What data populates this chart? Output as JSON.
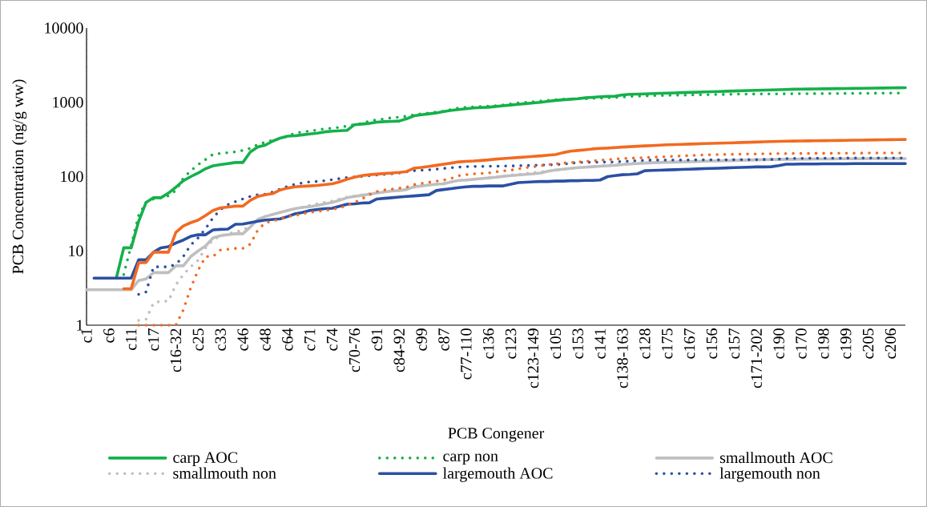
{
  "chart_data": {
    "type": "line",
    "xlabel": "PCB Congener",
    "ylabel": "PCB Concentration (ng/g ww)",
    "log": "y",
    "ylim": [
      1,
      10000
    ],
    "yticks": [
      1,
      10,
      100,
      1000,
      10000
    ],
    "legend": "bottom",
    "categories": [
      "c1",
      null,
      null,
      "c6",
      null,
      null,
      "c11",
      null,
      null,
      "c17",
      null,
      null,
      "c16-32",
      null,
      null,
      "c25",
      null,
      null,
      "c33",
      null,
      null,
      "c46",
      null,
      null,
      "c48",
      null,
      null,
      "c64",
      null,
      null,
      "c71",
      null,
      null,
      "c74",
      null,
      null,
      "c70-76",
      null,
      null,
      "c91",
      null,
      null,
      "c84-92",
      null,
      null,
      "c99",
      null,
      null,
      "c87",
      null,
      null,
      "c77-110",
      null,
      null,
      "c136",
      null,
      null,
      "c123",
      null,
      null,
      "c123-149",
      null,
      null,
      "c105",
      null,
      null,
      "c153",
      null,
      null,
      "c141",
      null,
      null,
      "c138-163",
      null,
      null,
      "c128",
      null,
      null,
      "c175",
      null,
      null,
      "c167",
      null,
      null,
      "c156",
      null,
      null,
      "c157",
      null,
      null,
      "c171-202",
      null,
      null,
      "c190",
      null,
      null,
      "c170",
      null,
      null,
      "c198",
      null,
      null,
      "c199",
      null,
      null,
      "c205",
      null,
      null,
      "c206",
      null,
      null
    ],
    "series": [
      {
        "name": "carp AOC",
        "color": "#15b04b",
        "line_style": "solid",
        "values": [
          null,
          null,
          null,
          null,
          4.3,
          11,
          11,
          25,
          45,
          52,
          52,
          60,
          72,
          88,
          100,
          112,
          128,
          140,
          145,
          150,
          155,
          155,
          215,
          250,
          265,
          300,
          330,
          350,
          355,
          365,
          375,
          385,
          400,
          410,
          415,
          420,
          500,
          510,
          520,
          540,
          550,
          555,
          560,
          600,
          660,
          680,
          700,
          720,
          750,
          780,
          800,
          820,
          840,
          850,
          860,
          880,
          900,
          920,
          940,
          960,
          980,
          1000,
          1030,
          1060,
          1080,
          1100,
          1120,
          1150,
          1170,
          1190,
          1200,
          1210,
          1260,
          1280,
          1290,
          1300,
          1310,
          1320,
          1330,
          1340,
          1350,
          1360,
          1370,
          1380,
          1390,
          1400,
          1410,
          1420,
          1430,
          1440,
          1450,
          1460,
          1470,
          1480,
          1490,
          1500,
          1505,
          1510,
          1515,
          1520,
          1525,
          1530,
          1535,
          1540,
          1545,
          1550,
          1555,
          1560,
          1565,
          1570,
          1575
        ]
      },
      {
        "name": "carp non",
        "color": "#15b04b",
        "line_style": "dotted",
        "values": [
          null,
          null,
          null,
          null,
          null,
          4.8,
          12,
          30,
          45,
          50,
          52,
          55,
          65,
          95,
          120,
          145,
          170,
          200,
          205,
          210,
          215,
          225,
          240,
          270,
          290,
          310,
          325,
          350,
          385,
          400,
          410,
          425,
          440,
          450,
          460,
          480,
          500,
          520,
          560,
          580,
          600,
          620,
          630,
          650,
          680,
          700,
          720,
          740,
          760,
          800,
          840,
          860,
          870,
          880,
          890,
          900,
          920,
          950,
          980,
          1000,
          1020,
          1040,
          1060,
          1080,
          1100,
          1110,
          1120,
          1120,
          1130,
          1140,
          1150,
          1160,
          1180,
          1200,
          1210,
          1220,
          1230,
          1235,
          1240,
          1245,
          1250,
          1255,
          1260,
          1265,
          1270,
          1275,
          1280,
          1285,
          1290,
          1292,
          1294,
          1296,
          1298,
          1300,
          1302,
          1304,
          1306,
          1308,
          1310,
          1312,
          1314,
          1316,
          1318,
          1320,
          1322,
          1324,
          1326,
          1328,
          1330,
          1332,
          1334
        ]
      },
      {
        "name": "smallmouth AOC",
        "color": "#bfbfbf",
        "line_style": "solid",
        "values": [
          3,
          3,
          3,
          3,
          3,
          3,
          3,
          4,
          4.2,
          5.1,
          5.1,
          5.1,
          6.3,
          6.3,
          8.4,
          10,
          11.7,
          15,
          16,
          16.5,
          17,
          17,
          21,
          26.5,
          29,
          31,
          33,
          35,
          37,
          38.5,
          39.5,
          41,
          43,
          45,
          48,
          52,
          54,
          56,
          58,
          60,
          62,
          64,
          65,
          67,
          73,
          75,
          77,
          79,
          80,
          85,
          89,
          90,
          92,
          94,
          96,
          98,
          101,
          103,
          105,
          107,
          109,
          112,
          118,
          123,
          126,
          129,
          132,
          134,
          136,
          138,
          140,
          142,
          145,
          148,
          150,
          152,
          154,
          155,
          156,
          157,
          158,
          159,
          160,
          161,
          162,
          163,
          164,
          165,
          166,
          167,
          168,
          169,
          170,
          170,
          171,
          171,
          172,
          172,
          173,
          173,
          173,
          174,
          174,
          174,
          174,
          175,
          175,
          175,
          175,
          175,
          175
        ]
      },
      {
        "name": "smallmouth non",
        "color": "#bfbfbf",
        "line_style": "dotted",
        "values": [
          null,
          null,
          null,
          null,
          null,
          null,
          null,
          1.16,
          1.2,
          2.0,
          2.1,
          2.1,
          3.5,
          4.8,
          6.1,
          7.5,
          11,
          14,
          16,
          17,
          18,
          19,
          22,
          26,
          29,
          31,
          33,
          35,
          37,
          39,
          41,
          43,
          45,
          47,
          50,
          53,
          55,
          57,
          59,
          61,
          63,
          65,
          67,
          69,
          72,
          75,
          77,
          79,
          82,
          85,
          88,
          90,
          92,
          94,
          96,
          99,
          102,
          105,
          107,
          110,
          113,
          116,
          119,
          122,
          125,
          128,
          131,
          134,
          137,
          140,
          143,
          146,
          149,
          151,
          153,
          155,
          157,
          158,
          159,
          160,
          161,
          162,
          163,
          164,
          165,
          166,
          167,
          168,
          169,
          170,
          170,
          171,
          171,
          172,
          172,
          172,
          173,
          173,
          173,
          174,
          174,
          174,
          174,
          175,
          175,
          175,
          175,
          175,
          175,
          175,
          175
        ]
      },
      {
        "name": "largemouth AOC",
        "color": "#2b50a3",
        "line_style": "solid",
        "values": [
          null,
          4.3,
          4.3,
          4.3,
          4.3,
          4.3,
          4.3,
          7.6,
          7.6,
          9.6,
          11,
          11.4,
          12.8,
          14,
          15.7,
          16.5,
          16.5,
          19.2,
          19.5,
          19.7,
          22.8,
          23,
          24,
          25,
          26,
          26.5,
          27,
          29,
          31.5,
          33,
          35,
          36,
          37,
          37.5,
          40,
          42.5,
          43,
          44,
          44.5,
          50,
          51,
          52,
          53,
          54,
          55,
          56,
          57,
          65,
          67,
          69,
          71,
          73,
          74,
          74,
          75,
          75,
          75,
          79,
          83,
          84,
          85,
          86,
          86,
          87,
          87,
          88,
          88,
          89,
          89,
          90,
          100,
          103,
          106,
          107,
          109,
          120,
          121,
          122,
          123,
          124,
          125,
          126,
          127,
          128,
          129,
          130,
          131,
          132,
          133,
          134,
          135,
          135,
          136,
          141,
          147,
          147,
          148,
          148,
          148,
          149,
          149,
          149,
          149,
          150,
          150,
          150,
          150,
          150,
          150,
          150,
          150
        ]
      },
      {
        "name": "largemouth non",
        "color": "#2b50a3",
        "line_style": "dotted",
        "values": [
          null,
          null,
          null,
          null,
          null,
          null,
          null,
          2.6,
          2.8,
          6.1,
          6.1,
          6.1,
          6.6,
          8.4,
          12,
          15,
          20,
          28,
          36,
          42,
          46,
          50,
          54,
          57,
          58,
          62,
          68,
          74,
          79,
          82,
          85,
          86,
          88,
          91,
          94,
          97,
          99,
          101,
          103,
          105,
          107,
          109,
          112,
          116,
          120,
          122,
          123,
          126,
          129,
          132,
          134,
          136,
          137,
          137,
          138,
          138,
          139,
          139,
          140,
          141,
          142,
          143,
          144,
          145,
          147,
          151,
          155,
          156,
          156,
          157,
          157,
          158,
          160,
          162,
          164,
          166,
          167,
          167,
          167,
          167,
          167,
          167,
          168,
          168,
          168,
          168,
          168,
          169,
          169,
          169,
          169,
          170,
          170,
          172,
          175,
          176,
          176,
          177,
          177,
          177,
          177,
          177,
          178,
          178,
          178,
          178,
          178,
          178,
          178,
          178,
          178
        ]
      },
      {
        "color": "#f26a21",
        "line_style": "solid",
        "values": [
          null,
          null,
          null,
          null,
          null,
          3.1,
          3.1,
          6.9,
          7,
          9.6,
          9.6,
          9.6,
          17.8,
          21.7,
          24,
          26,
          30,
          35,
          38,
          39,
          40,
          40,
          48,
          54,
          57,
          59,
          66,
          70,
          73,
          74,
          75,
          76,
          78,
          80,
          85,
          92,
          98,
          103,
          106,
          108,
          110,
          112,
          114,
          117,
          130,
          133,
          137,
          142,
          147,
          152,
          158,
          160,
          162,
          165,
          168,
          172,
          175,
          178,
          181,
          184,
          187,
          190,
          194,
          198,
          210,
          220,
          225,
          230,
          236,
          240,
          242,
          246,
          250,
          253,
          256,
          259,
          262,
          265,
          268,
          270,
          272,
          274,
          276,
          278,
          280,
          282,
          284,
          286,
          288,
          290,
          292,
          294,
          296,
          298,
          300,
          301,
          302,
          303,
          304,
          305,
          306,
          307,
          308,
          309,
          310,
          311,
          312,
          313,
          314,
          315,
          316
        ]
      },
      {
        "color": "#f26a21",
        "line_style": "dotted",
        "values": [
          null,
          null,
          null,
          null,
          null,
          null,
          null,
          1,
          1,
          1,
          1,
          1,
          1,
          1.6,
          3.2,
          5.5,
          8.4,
          8.4,
          10.3,
          10.5,
          10.8,
          10.8,
          12.3,
          19,
          24,
          25,
          27,
          29,
          30,
          31.5,
          33,
          34,
          35,
          36,
          38,
          41,
          45,
          50,
          57,
          63,
          66,
          68,
          70,
          72,
          78,
          81,
          84,
          87,
          90,
          95,
          103,
          106,
          109,
          110,
          112,
          116,
          119,
          122,
          127,
          132,
          135,
          140,
          145,
          148,
          152,
          155,
          157,
          160,
          163,
          166,
          169,
          172,
          175,
          177,
          178,
          180,
          182,
          184,
          186,
          188,
          190,
          192,
          194,
          196,
          197,
          198,
          199,
          200,
          201,
          202,
          202,
          203,
          203,
          204,
          204,
          205,
          205,
          205,
          206,
          206,
          206,
          207,
          207,
          207,
          207,
          208,
          208,
          208,
          208,
          208,
          208
        ]
      }
    ]
  }
}
